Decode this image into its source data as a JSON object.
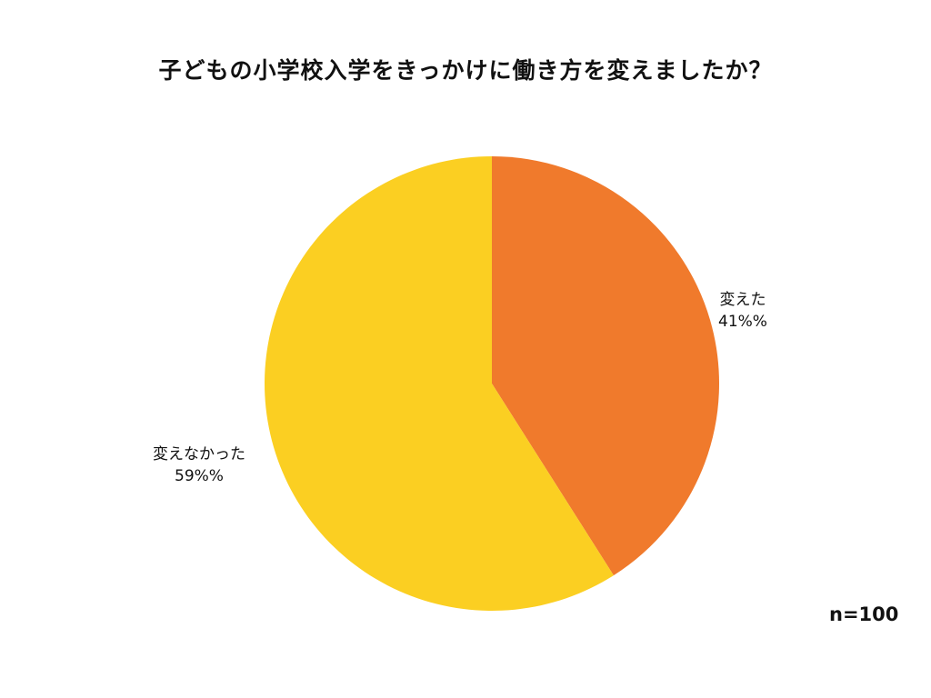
{
  "chart_data": {
    "type": "pie",
    "title": "子どもの小学校入学をきっかけに働き方を変えましたか？",
    "slices": [
      {
        "label": "変えた",
        "value": 41,
        "display": "41%%",
        "color": "#F07A2C"
      },
      {
        "label": "変えなかった",
        "value": 59,
        "display": "59%%",
        "color": "#FBCF22"
      }
    ],
    "start_angle_deg": 0,
    "direction": "clockwise",
    "note": "n=100"
  }
}
